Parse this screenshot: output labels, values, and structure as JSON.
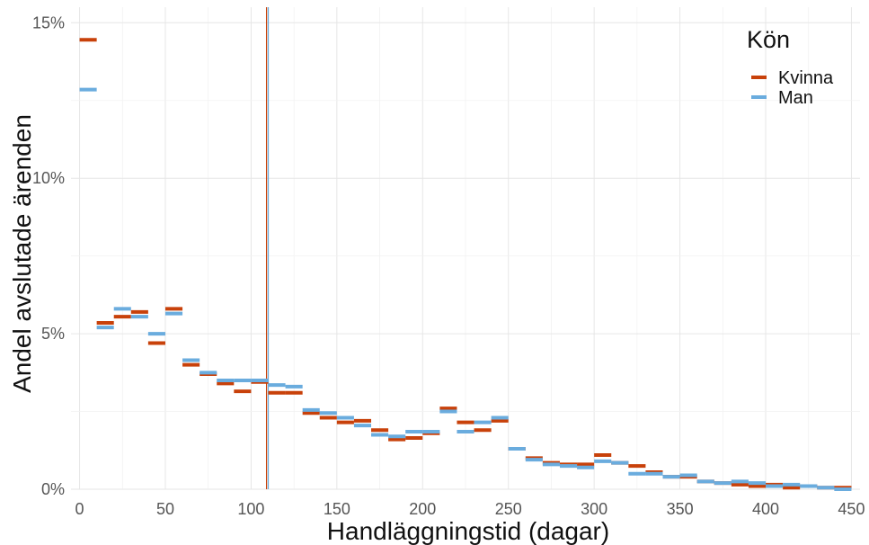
{
  "chart_data": {
    "type": "line",
    "xlabel": "Handläggningstid (dagar)",
    "ylabel": "Andel avslutade ärenden",
    "xlim": [
      -5,
      455
    ],
    "ylim": [
      0,
      15.5
    ],
    "x_ticks": [
      0,
      50,
      100,
      150,
      200,
      250,
      300,
      350,
      400,
      450
    ],
    "x_tick_labels": [
      "0",
      "50",
      "100",
      "150",
      "200",
      "250",
      "300",
      "350",
      "400",
      "450"
    ],
    "y_ticks": [
      0,
      5,
      10,
      15
    ],
    "y_tick_labels": [
      "0%",
      "5%",
      "10%",
      "15%"
    ],
    "grid": true,
    "bin_width": 10,
    "bin_starts": [
      0,
      10,
      20,
      30,
      40,
      50,
      60,
      70,
      80,
      90,
      100,
      110,
      120,
      130,
      140,
      150,
      160,
      170,
      180,
      190,
      200,
      210,
      220,
      230,
      240,
      250,
      260,
      270,
      280,
      290,
      300,
      310,
      320,
      330,
      340,
      350,
      360,
      370,
      380,
      390,
      400,
      410,
      420,
      430,
      440
    ],
    "legend": {
      "title": "Kön",
      "position": "top-right"
    },
    "series": [
      {
        "name": "Kvinna",
        "color": "#c8410a",
        "values": [
          14.45,
          5.35,
          5.55,
          5.7,
          4.7,
          5.8,
          4.0,
          3.7,
          3.4,
          3.15,
          3.45,
          3.1,
          3.1,
          2.45,
          2.3,
          2.15,
          2.2,
          1.9,
          1.6,
          1.65,
          1.8,
          2.6,
          2.15,
          1.9,
          2.2,
          1.3,
          1.0,
          0.85,
          0.8,
          0.8,
          1.1,
          0.85,
          0.75,
          0.55,
          0.4,
          0.4,
          0.25,
          0.2,
          0.15,
          0.1,
          0.15,
          0.05,
          0.1,
          0.05,
          0.05
        ]
      },
      {
        "name": "Man",
        "color": "#6aacde",
        "values": [
          12.85,
          5.2,
          5.8,
          5.55,
          5.0,
          5.65,
          4.15,
          3.75,
          3.5,
          3.5,
          3.5,
          3.35,
          3.3,
          2.55,
          2.45,
          2.3,
          2.05,
          1.75,
          1.7,
          1.85,
          1.85,
          2.5,
          1.85,
          2.15,
          2.3,
          1.3,
          0.95,
          0.8,
          0.75,
          0.7,
          0.9,
          0.85,
          0.5,
          0.5,
          0.4,
          0.45,
          0.25,
          0.2,
          0.25,
          0.2,
          0.1,
          0.15,
          0.1,
          0.05,
          0.0
        ]
      }
    ],
    "reference_lines": [
      {
        "x": 109,
        "color": "#c8410a"
      },
      {
        "x": 110,
        "color": "#6aacde"
      }
    ]
  }
}
